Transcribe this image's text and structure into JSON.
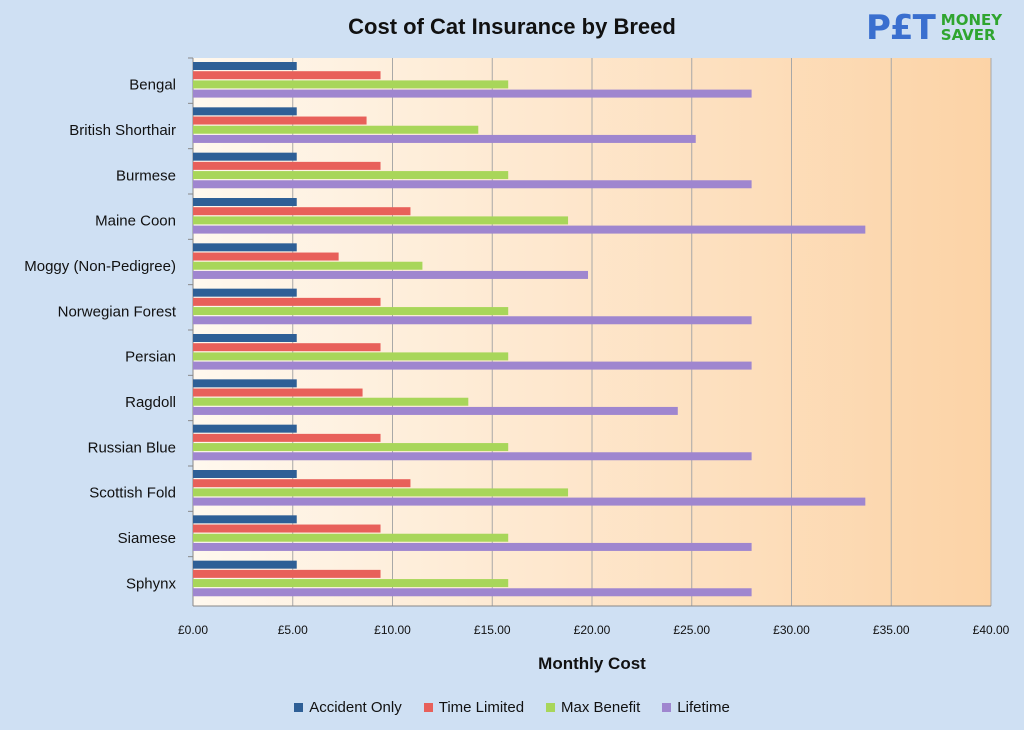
{
  "chart_data": {
    "type": "bar",
    "orientation": "horizontal",
    "title": "Cost of Cat Insurance by Breed",
    "xlabel": "Monthly Cost",
    "ylabel": "",
    "xlim": [
      0,
      40
    ],
    "x_ticks": [
      "£0.00",
      "£5.00",
      "£10.00",
      "£15.00",
      "£20.00",
      "£25.00",
      "£30.00",
      "£35.00",
      "£40.00"
    ],
    "x_tick_values": [
      0,
      5,
      10,
      15,
      20,
      25,
      30,
      35,
      40
    ],
    "grid": true,
    "legend_position": "bottom",
    "categories": [
      "Bengal",
      "British Shorthair",
      "Burmese",
      "Maine Coon",
      "Moggy (Non-Pedigree)",
      "Norwegian Forest",
      "Persian",
      "Ragdoll",
      "Russian Blue",
      "Scottish Fold",
      "Siamese",
      "Sphynx"
    ],
    "series": [
      {
        "name": "Accident Only",
        "color": "#2e5f96",
        "values": [
          5.2,
          5.2,
          5.2,
          5.2,
          5.2,
          5.2,
          5.2,
          5.2,
          5.2,
          5.2,
          5.2,
          5.2
        ]
      },
      {
        "name": "Time Limited",
        "color": "#e8605a",
        "values": [
          9.4,
          8.7,
          9.4,
          10.9,
          7.3,
          9.4,
          9.4,
          8.5,
          9.4,
          10.9,
          9.4,
          9.4
        ]
      },
      {
        "name": "Max Benefit",
        "color": "#a8d65a",
        "values": [
          15.8,
          14.3,
          15.8,
          18.8,
          11.5,
          15.8,
          15.8,
          13.8,
          15.8,
          18.8,
          15.8,
          15.8
        ]
      },
      {
        "name": "Lifetime",
        "color": "#9f86cf",
        "values": [
          28.0,
          25.2,
          28.0,
          33.7,
          19.8,
          28.0,
          28.0,
          24.3,
          28.0,
          33.7,
          28.0,
          28.0
        ]
      }
    ]
  },
  "logo": {
    "left": "P£T",
    "right_top": "MONEY",
    "right_bottom": "SAVER"
  }
}
